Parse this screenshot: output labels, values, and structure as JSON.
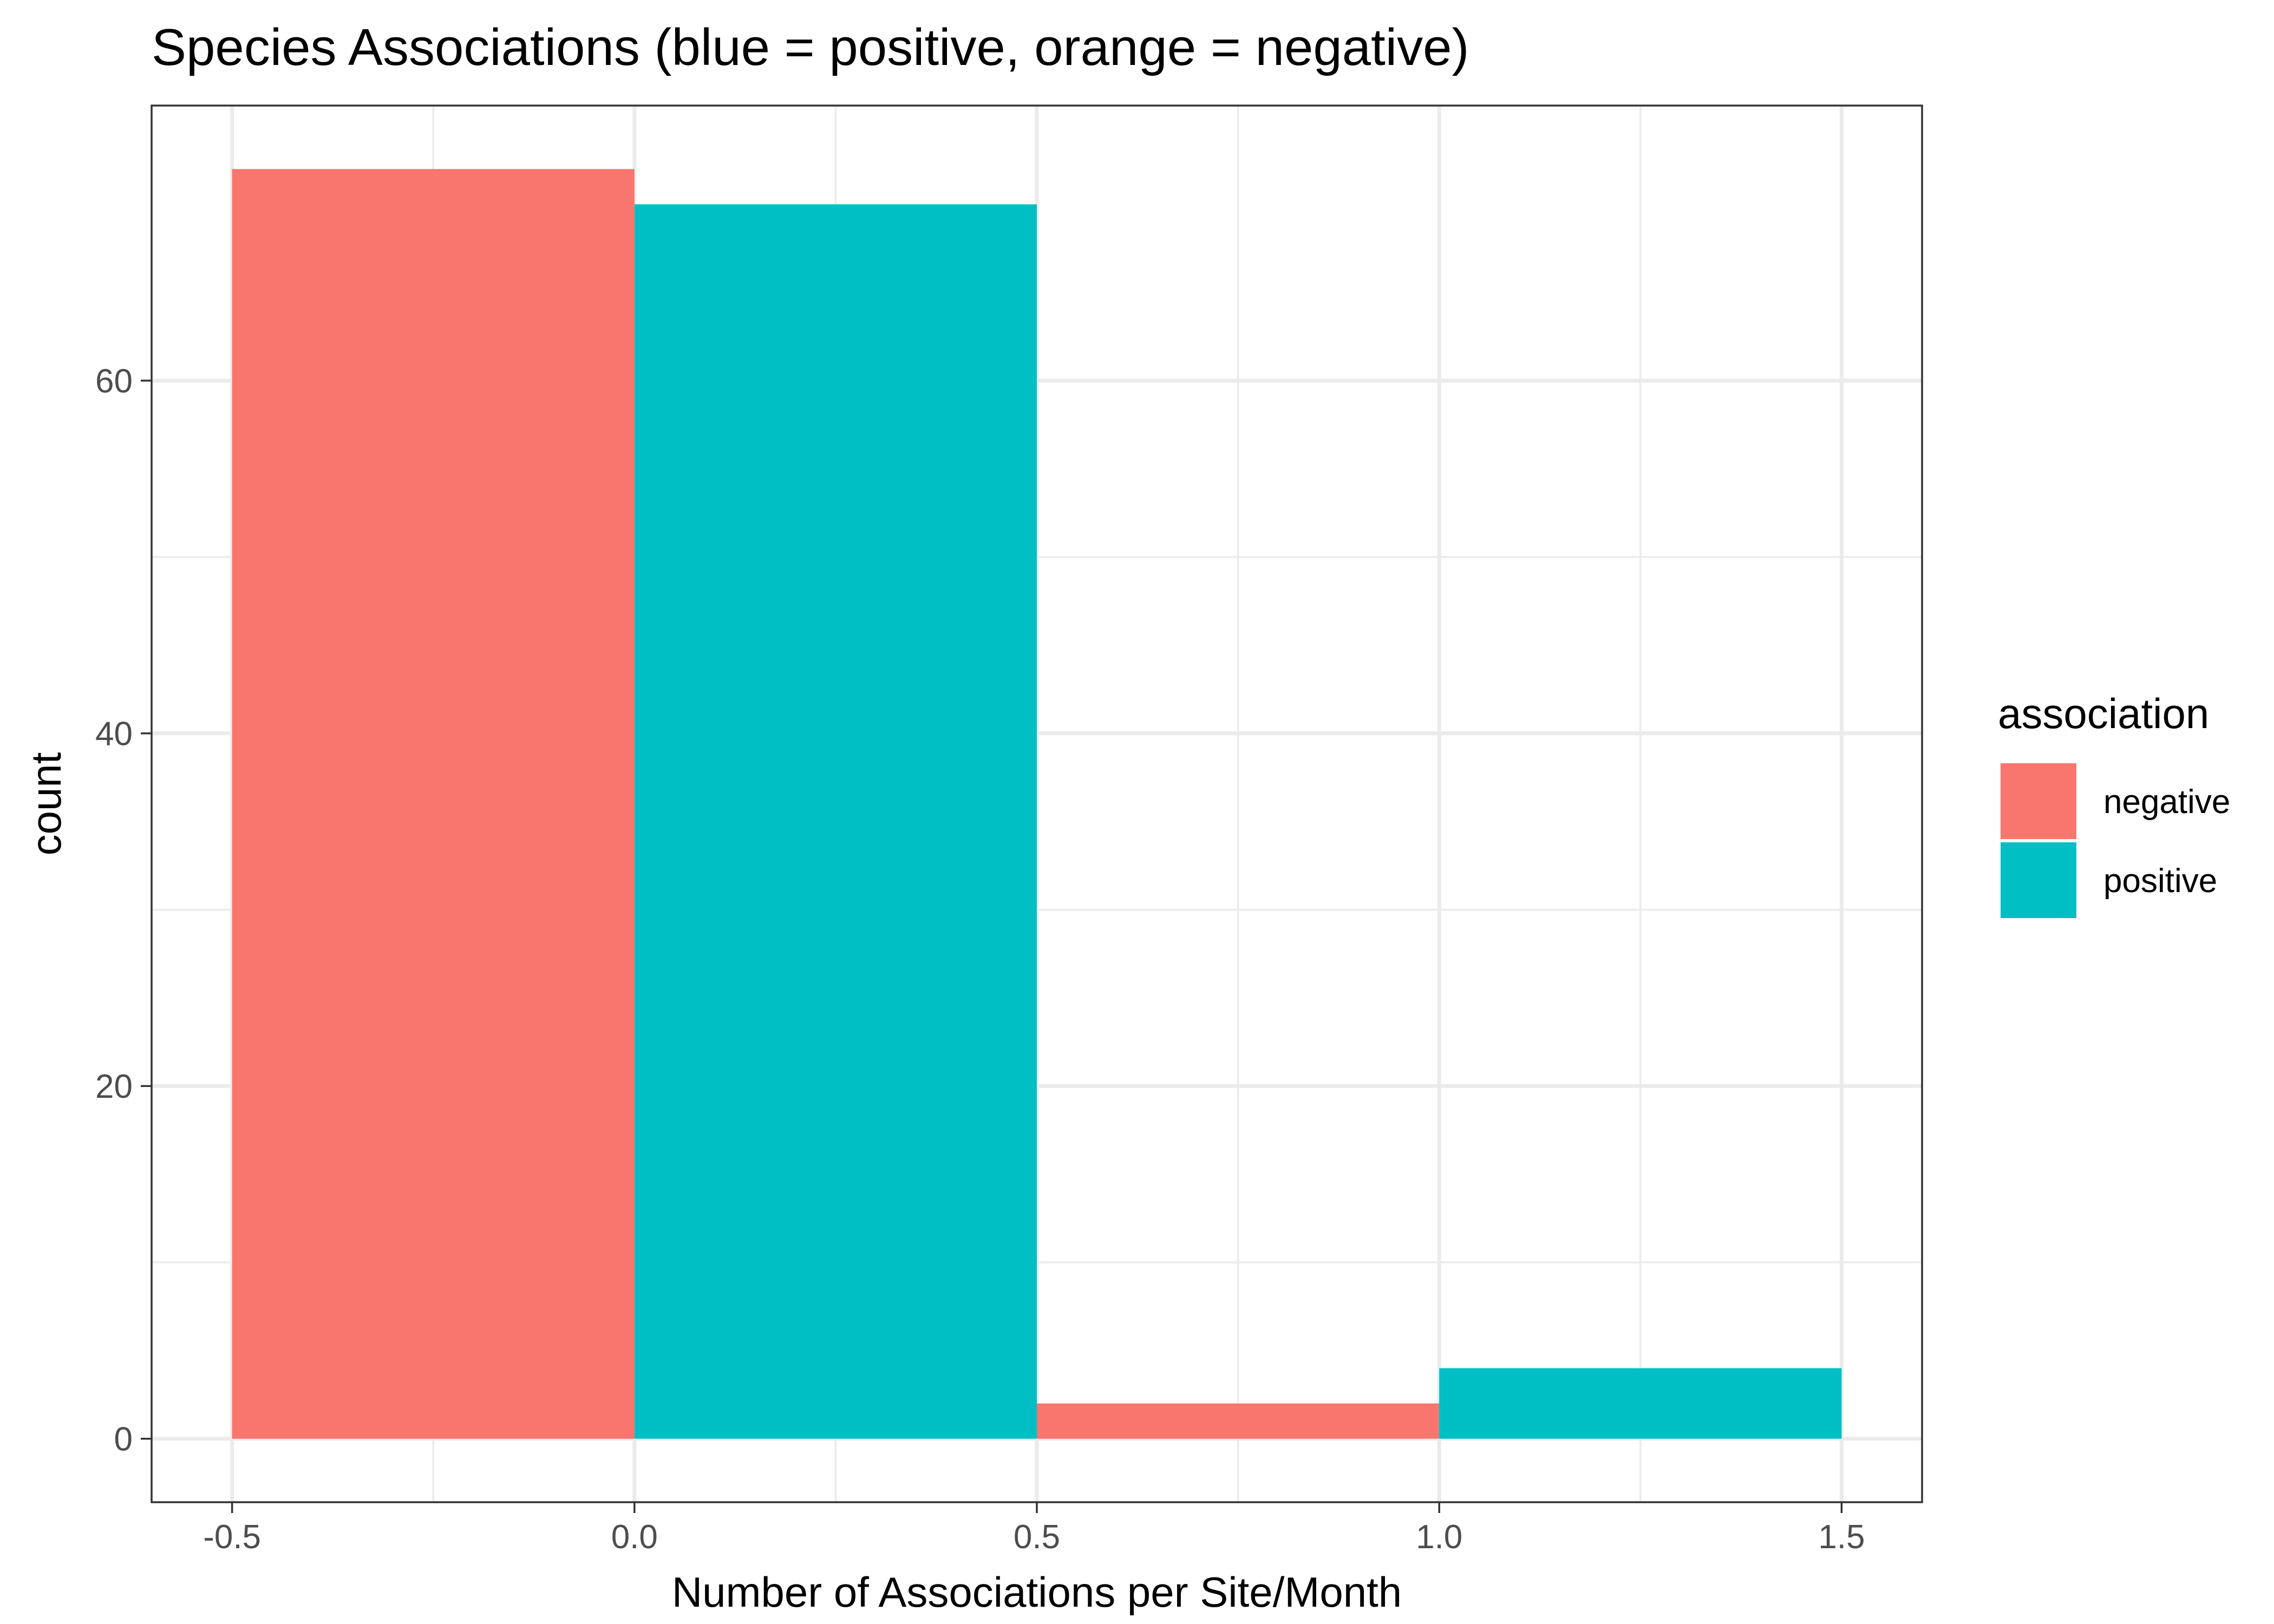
{
  "chart_data": {
    "type": "bar",
    "title": "Species Associations (blue = positive, orange = negative)",
    "xlabel": "Number of Associations per Site/Month",
    "ylabel": "count",
    "xlim": [
      -0.6,
      1.6
    ],
    "ylim": [
      -3.6,
      75.6
    ],
    "x_ticks": [
      -0.5,
      0.0,
      0.5,
      1.0,
      1.5
    ],
    "x_tick_labels": [
      "-0.5",
      "0.0",
      "0.5",
      "1.0",
      "1.5"
    ],
    "y_ticks": [
      0,
      20,
      40,
      60
    ],
    "y_tick_labels": [
      "0",
      "20",
      "40",
      "60"
    ],
    "grid": true,
    "legend": {
      "title": "association",
      "position": "right",
      "entries": [
        {
          "label": "negative",
          "color": "#F8766D"
        },
        {
          "label": "positive",
          "color": "#00BFC4"
        }
      ]
    },
    "bars": [
      {
        "xmin": -0.5,
        "xmax": 0.0,
        "count": 72,
        "association": "negative",
        "color": "#F8766D"
      },
      {
        "xmin": 0.0,
        "xmax": 0.5,
        "count": 70,
        "association": "positive",
        "color": "#00BFC4"
      },
      {
        "xmin": 0.5,
        "xmax": 1.0,
        "count": 2,
        "association": "negative",
        "color": "#F8766D"
      },
      {
        "xmin": 1.0,
        "xmax": 1.5,
        "count": 4,
        "association": "positive",
        "color": "#00BFC4"
      }
    ]
  }
}
